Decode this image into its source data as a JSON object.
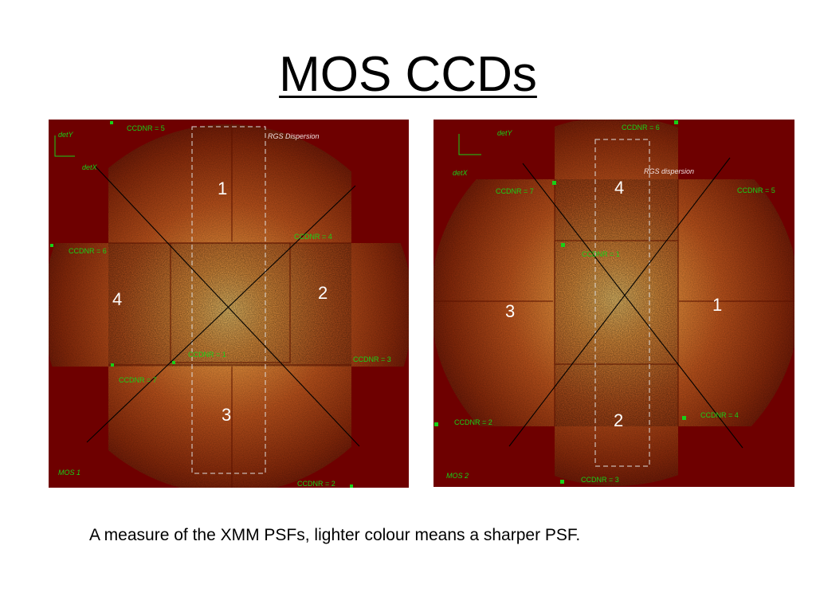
{
  "slide": {
    "title": "MOS CCDs",
    "caption": "A measure of the XMM PSFs, lighter colour means a sharper PSF."
  },
  "colors": {
    "background": "#ffffff",
    "frame_dark": "#6e0000",
    "label_green": "#18d018",
    "ccd_glow_center": "#ffd070",
    "ccd_glow_edge": "#7a1800"
  },
  "mos1": {
    "instrument": "MOS 1",
    "det_y": "detY",
    "det_x": "detX",
    "rgs_dispersion": "RGS Dispersion",
    "ccd_numbers": [
      "1",
      "2",
      "3",
      "4"
    ],
    "ccdnr_labels": [
      "CCDNR = 5",
      "CCDNR = 4",
      "CCDNR = 6",
      "CCDNR = 1",
      "CCDNR = 3",
      "CCDNR = 7",
      "CCDNR = 2"
    ]
  },
  "mos2": {
    "instrument": "MOS 2",
    "det_y": "detY",
    "det_x": "detX",
    "rgs_dispersion": "RGS dispersion",
    "ccd_numbers": [
      "4",
      "3",
      "1",
      "2"
    ],
    "ccdnr_labels": [
      "CCDNR = 6",
      "CCDNR = 7",
      "CCDNR = 5",
      "CCDNR = 1",
      "CCDNR = 2",
      "CCDNR = 4",
      "CCDNR = 3"
    ]
  }
}
